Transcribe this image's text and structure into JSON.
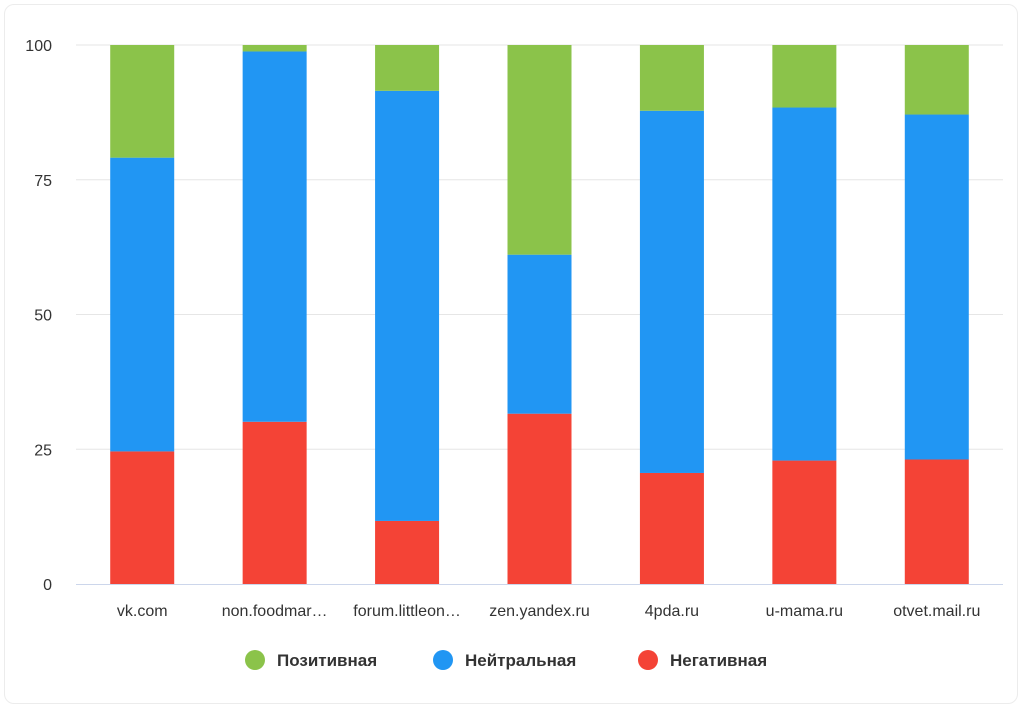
{
  "chart_data": {
    "type": "bar",
    "stacked": true,
    "categories": [
      "vk.com",
      "non.foodmar…",
      "forum.littleon…",
      "zen.yandex.ru",
      "4pda.ru",
      "u-mama.ru",
      "otvet.mail.ru"
    ],
    "series": [
      {
        "name": "Негативная",
        "color": "#F44336",
        "values": [
          24.6,
          30.1,
          11.7,
          31.6,
          20.6,
          22.9,
          23.1
        ]
      },
      {
        "name": "Нейтральная",
        "color": "#2196F3",
        "values": [
          54.5,
          68.7,
          79.8,
          29.5,
          67.2,
          65.5,
          64.0
        ]
      },
      {
        "name": "Позитивная",
        "color": "#8BC34A",
        "values": [
          20.9,
          1.2,
          8.5,
          38.9,
          12.2,
          11.6,
          12.9
        ]
      }
    ],
    "legend_order": [
      "Позитивная",
      "Нейтральная",
      "Негативная"
    ],
    "y_ticks": [
      "0",
      "25",
      "50",
      "75",
      "100"
    ],
    "ylim": [
      0,
      100
    ],
    "grid": true,
    "legend_position": "bottom-center",
    "title": "",
    "xlabel": "",
    "ylabel": ""
  }
}
